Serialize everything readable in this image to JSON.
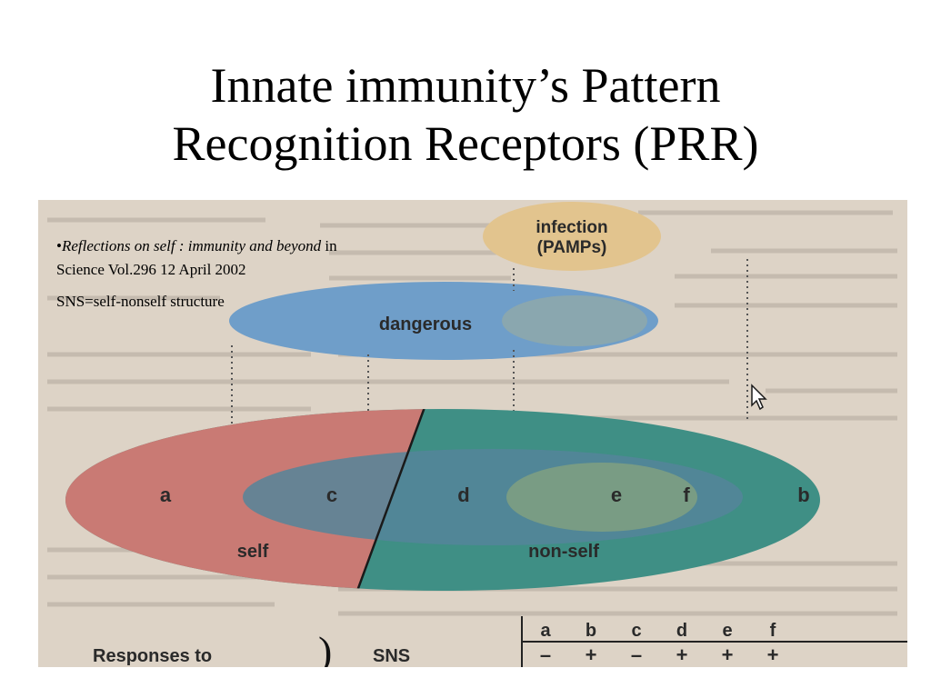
{
  "slide": {
    "title_line1": "Innate immunity’s Pattern",
    "title_line2": "Recognition Receptors (PRR)"
  },
  "reference": {
    "bullet": "•",
    "article": "Reflections on self : immunity and beyond",
    "in": " in",
    "journal": "Science Vol.296 12 April 2002"
  },
  "note": "SNS=self-nonself structure",
  "diagram": {
    "infection_line1": "infection",
    "infection_line2": "(PAMPs)",
    "dangerous": "dangerous",
    "regions": [
      "a",
      "c",
      "d",
      "e",
      "f",
      "b"
    ],
    "self": "self",
    "non_self": "non-self",
    "responses_to": "Responses to",
    "sns": "SNS",
    "table_headers": [
      "a",
      "b",
      "c",
      "d",
      "e",
      "f"
    ],
    "table_signs": [
      "–",
      "+",
      "–",
      "+",
      "+",
      "+"
    ],
    "colors": {
      "self": "#c97a74",
      "non_self": "#3f8f85",
      "dangerous": "#6f9ec9",
      "infection": "#e2c48e",
      "page_bg": "#ddd3c6"
    }
  }
}
